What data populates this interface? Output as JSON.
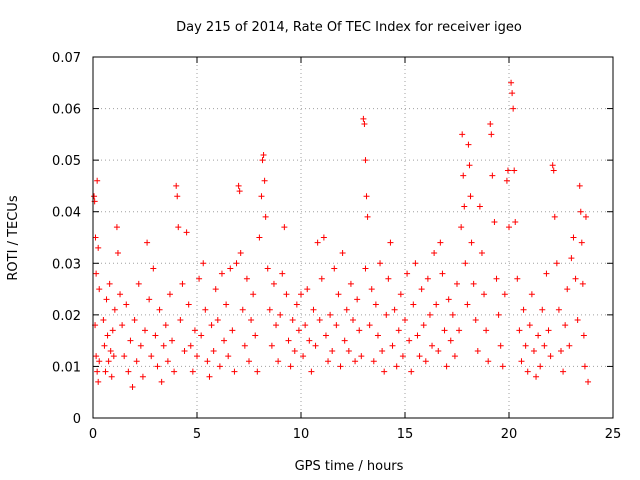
{
  "chart_data": {
    "type": "scatter",
    "title": "Day 215 of 2014, Rate Of TEC Index for receiver igeo",
    "xlabel": "GPS time / hours",
    "ylabel": "ROTI / TECUs",
    "xlim": [
      0,
      25
    ],
    "ylim": [
      0,
      0.07
    ],
    "x_ticks": [
      0,
      5,
      10,
      15,
      20,
      25
    ],
    "x_tick_labels": [
      "0",
      "5",
      "10",
      "15",
      "20",
      "25"
    ],
    "y_ticks": [
      0,
      0.01,
      0.02,
      0.03,
      0.04,
      0.05,
      0.06,
      0.07
    ],
    "y_tick_labels": [
      "0",
      "0.01",
      "0.02",
      "0.03",
      "0.04",
      "0.05",
      "0.06",
      "0.07"
    ],
    "grid": true,
    "marker": "+",
    "color": "#ff0000",
    "series": [
      {
        "name": "ROTI",
        "points": [
          [
            0.05,
            0.043
          ],
          [
            0.08,
            0.042
          ],
          [
            0.12,
            0.035
          ],
          [
            0.15,
            0.028
          ],
          [
            0.2,
            0.046
          ],
          [
            0.25,
            0.033
          ],
          [
            0.3,
            0.025
          ],
          [
            0.1,
            0.018
          ],
          [
            0.15,
            0.012
          ],
          [
            0.2,
            0.009
          ],
          [
            0.25,
            0.007
          ],
          [
            0.3,
            0.011
          ],
          [
            0.5,
            0.019
          ],
          [
            0.55,
            0.014
          ],
          [
            0.6,
            0.009
          ],
          [
            0.65,
            0.023
          ],
          [
            0.7,
            0.016
          ],
          [
            0.75,
            0.011
          ],
          [
            0.8,
            0.026
          ],
          [
            0.85,
            0.013
          ],
          [
            0.9,
            0.008
          ],
          [
            0.95,
            0.017
          ],
          [
            1.0,
            0.012
          ],
          [
            1.05,
            0.021
          ],
          [
            1.15,
            0.037
          ],
          [
            1.2,
            0.032
          ],
          [
            1.3,
            0.024
          ],
          [
            1.4,
            0.018
          ],
          [
            1.5,
            0.012
          ],
          [
            1.6,
            0.022
          ],
          [
            1.7,
            0.009
          ],
          [
            1.8,
            0.015
          ],
          [
            1.9,
            0.006
          ],
          [
            2.0,
            0.019
          ],
          [
            2.1,
            0.011
          ],
          [
            2.2,
            0.026
          ],
          [
            2.3,
            0.014
          ],
          [
            2.4,
            0.008
          ],
          [
            2.5,
            0.017
          ],
          [
            2.6,
            0.034
          ],
          [
            2.7,
            0.023
          ],
          [
            2.8,
            0.012
          ],
          [
            2.9,
            0.029
          ],
          [
            3.0,
            0.016
          ],
          [
            3.1,
            0.01
          ],
          [
            3.2,
            0.021
          ],
          [
            3.3,
            0.007
          ],
          [
            3.4,
            0.014
          ],
          [
            3.5,
            0.018
          ],
          [
            3.6,
            0.011
          ],
          [
            3.7,
            0.024
          ],
          [
            3.8,
            0.015
          ],
          [
            3.9,
            0.009
          ],
          [
            4.0,
            0.045
          ],
          [
            4.05,
            0.043
          ],
          [
            4.1,
            0.037
          ],
          [
            4.2,
            0.019
          ],
          [
            4.3,
            0.026
          ],
          [
            4.4,
            0.013
          ],
          [
            4.5,
            0.036
          ],
          [
            4.6,
            0.022
          ],
          [
            4.7,
            0.014
          ],
          [
            4.8,
            0.009
          ],
          [
            4.9,
            0.017
          ],
          [
            5.0,
            0.012
          ],
          [
            5.1,
            0.027
          ],
          [
            5.2,
            0.016
          ],
          [
            5.3,
            0.03
          ],
          [
            5.4,
            0.021
          ],
          [
            5.5,
            0.011
          ],
          [
            5.6,
            0.008
          ],
          [
            5.7,
            0.018
          ],
          [
            5.8,
            0.013
          ],
          [
            5.9,
            0.025
          ],
          [
            6.0,
            0.019
          ],
          [
            6.1,
            0.01
          ],
          [
            6.2,
            0.028
          ],
          [
            6.3,
            0.015
          ],
          [
            6.4,
            0.022
          ],
          [
            6.5,
            0.012
          ],
          [
            6.6,
            0.029
          ],
          [
            6.7,
            0.017
          ],
          [
            6.8,
            0.009
          ],
          [
            6.9,
            0.03
          ],
          [
            7.0,
            0.045
          ],
          [
            7.05,
            0.044
          ],
          [
            7.1,
            0.032
          ],
          [
            7.2,
            0.021
          ],
          [
            7.3,
            0.014
          ],
          [
            7.4,
            0.027
          ],
          [
            7.5,
            0.011
          ],
          [
            7.6,
            0.019
          ],
          [
            7.7,
            0.024
          ],
          [
            7.8,
            0.016
          ],
          [
            7.9,
            0.009
          ],
          [
            8.0,
            0.035
          ],
          [
            8.1,
            0.043
          ],
          [
            8.15,
            0.05
          ],
          [
            8.2,
            0.051
          ],
          [
            8.25,
            0.046
          ],
          [
            8.3,
            0.039
          ],
          [
            8.4,
            0.029
          ],
          [
            8.5,
            0.021
          ],
          [
            8.6,
            0.014
          ],
          [
            8.7,
            0.026
          ],
          [
            8.8,
            0.018
          ],
          [
            8.9,
            0.011
          ],
          [
            9.0,
            0.02
          ],
          [
            9.1,
            0.028
          ],
          [
            9.2,
            0.037
          ],
          [
            9.3,
            0.024
          ],
          [
            9.4,
            0.015
          ],
          [
            9.5,
            0.01
          ],
          [
            9.6,
            0.019
          ],
          [
            9.7,
            0.013
          ],
          [
            9.8,
            0.022
          ],
          [
            9.9,
            0.017
          ],
          [
            10.0,
            0.024
          ],
          [
            10.1,
            0.012
          ],
          [
            10.2,
            0.018
          ],
          [
            10.3,
            0.025
          ],
          [
            10.4,
            0.015
          ],
          [
            10.5,
            0.009
          ],
          [
            10.6,
            0.021
          ],
          [
            10.7,
            0.014
          ],
          [
            10.8,
            0.034
          ],
          [
            10.9,
            0.019
          ],
          [
            11.0,
            0.027
          ],
          [
            11.1,
            0.035
          ],
          [
            11.2,
            0.016
          ],
          [
            11.3,
            0.011
          ],
          [
            11.4,
            0.02
          ],
          [
            11.5,
            0.013
          ],
          [
            11.6,
            0.029
          ],
          [
            11.7,
            0.018
          ],
          [
            11.8,
            0.024
          ],
          [
            11.9,
            0.01
          ],
          [
            12.0,
            0.032
          ],
          [
            12.1,
            0.015
          ],
          [
            12.2,
            0.021
          ],
          [
            12.3,
            0.013
          ],
          [
            12.4,
            0.026
          ],
          [
            12.5,
            0.019
          ],
          [
            12.6,
            0.011
          ],
          [
            12.7,
            0.023
          ],
          [
            12.8,
            0.017
          ],
          [
            12.9,
            0.012
          ],
          [
            13.0,
            0.058
          ],
          [
            13.05,
            0.057
          ],
          [
            13.1,
            0.05
          ],
          [
            13.15,
            0.043
          ],
          [
            13.2,
            0.039
          ],
          [
            13.1,
            0.029
          ],
          [
            13.3,
            0.018
          ],
          [
            13.4,
            0.025
          ],
          [
            13.5,
            0.011
          ],
          [
            13.6,
            0.022
          ],
          [
            13.7,
            0.016
          ],
          [
            13.8,
            0.03
          ],
          [
            13.9,
            0.013
          ],
          [
            14.0,
            0.009
          ],
          [
            14.1,
            0.02
          ],
          [
            14.2,
            0.027
          ],
          [
            14.3,
            0.034
          ],
          [
            14.4,
            0.014
          ],
          [
            14.5,
            0.021
          ],
          [
            14.6,
            0.01
          ],
          [
            14.7,
            0.017
          ],
          [
            14.8,
            0.024
          ],
          [
            14.9,
            0.012
          ],
          [
            15.0,
            0.019
          ],
          [
            15.1,
            0.028
          ],
          [
            15.2,
            0.015
          ],
          [
            15.3,
            0.009
          ],
          [
            15.4,
            0.022
          ],
          [
            15.5,
            0.03
          ],
          [
            15.6,
            0.016
          ],
          [
            15.7,
            0.012
          ],
          [
            15.8,
            0.025
          ],
          [
            15.9,
            0.018
          ],
          [
            16.0,
            0.011
          ],
          [
            16.1,
            0.027
          ],
          [
            16.2,
            0.02
          ],
          [
            16.3,
            0.014
          ],
          [
            16.4,
            0.032
          ],
          [
            16.5,
            0.022
          ],
          [
            16.6,
            0.013
          ],
          [
            16.7,
            0.034
          ],
          [
            16.8,
            0.028
          ],
          [
            16.9,
            0.017
          ],
          [
            17.0,
            0.01
          ],
          [
            17.1,
            0.023
          ],
          [
            17.2,
            0.015
          ],
          [
            17.3,
            0.02
          ],
          [
            17.4,
            0.012
          ],
          [
            17.5,
            0.026
          ],
          [
            17.6,
            0.017
          ],
          [
            17.7,
            0.037
          ],
          [
            17.75,
            0.055
          ],
          [
            17.8,
            0.047
          ],
          [
            17.85,
            0.041
          ],
          [
            17.9,
            0.03
          ],
          [
            18.0,
            0.022
          ],
          [
            18.05,
            0.053
          ],
          [
            18.1,
            0.049
          ],
          [
            18.15,
            0.043
          ],
          [
            18.2,
            0.034
          ],
          [
            18.3,
            0.026
          ],
          [
            18.4,
            0.019
          ],
          [
            18.5,
            0.013
          ],
          [
            18.6,
            0.041
          ],
          [
            18.7,
            0.032
          ],
          [
            18.8,
            0.024
          ],
          [
            18.9,
            0.017
          ],
          [
            19.0,
            0.011
          ],
          [
            19.1,
            0.057
          ],
          [
            19.15,
            0.055
          ],
          [
            19.2,
            0.047
          ],
          [
            19.3,
            0.038
          ],
          [
            19.4,
            0.027
          ],
          [
            19.5,
            0.02
          ],
          [
            19.6,
            0.014
          ],
          [
            19.7,
            0.01
          ],
          [
            19.8,
            0.024
          ],
          [
            19.9,
            0.046
          ],
          [
            19.95,
            0.048
          ],
          [
            20.0,
            0.037
          ],
          [
            20.1,
            0.065
          ],
          [
            20.15,
            0.063
          ],
          [
            20.2,
            0.06
          ],
          [
            20.25,
            0.048
          ],
          [
            20.3,
            0.038
          ],
          [
            20.4,
            0.027
          ],
          [
            20.5,
            0.017
          ],
          [
            20.6,
            0.011
          ],
          [
            20.7,
            0.021
          ],
          [
            20.8,
            0.014
          ],
          [
            20.9,
            0.009
          ],
          [
            21.0,
            0.018
          ],
          [
            21.1,
            0.024
          ],
          [
            21.2,
            0.013
          ],
          [
            21.3,
            0.008
          ],
          [
            21.4,
            0.016
          ],
          [
            21.5,
            0.01
          ],
          [
            21.6,
            0.021
          ],
          [
            21.7,
            0.014
          ],
          [
            21.8,
            0.028
          ],
          [
            21.9,
            0.017
          ],
          [
            22.0,
            0.012
          ],
          [
            22.1,
            0.049
          ],
          [
            22.15,
            0.048
          ],
          [
            22.2,
            0.039
          ],
          [
            22.3,
            0.03
          ],
          [
            22.4,
            0.021
          ],
          [
            22.5,
            0.013
          ],
          [
            22.6,
            0.009
          ],
          [
            22.7,
            0.018
          ],
          [
            22.8,
            0.025
          ],
          [
            22.9,
            0.014
          ],
          [
            23.0,
            0.031
          ],
          [
            23.1,
            0.035
          ],
          [
            23.2,
            0.027
          ],
          [
            23.3,
            0.019
          ],
          [
            23.4,
            0.045
          ],
          [
            23.45,
            0.04
          ],
          [
            23.5,
            0.034
          ],
          [
            23.55,
            0.026
          ],
          [
            23.6,
            0.016
          ],
          [
            23.65,
            0.01
          ],
          [
            23.7,
            0.039
          ],
          [
            23.8,
            0.007
          ]
        ]
      }
    ]
  }
}
